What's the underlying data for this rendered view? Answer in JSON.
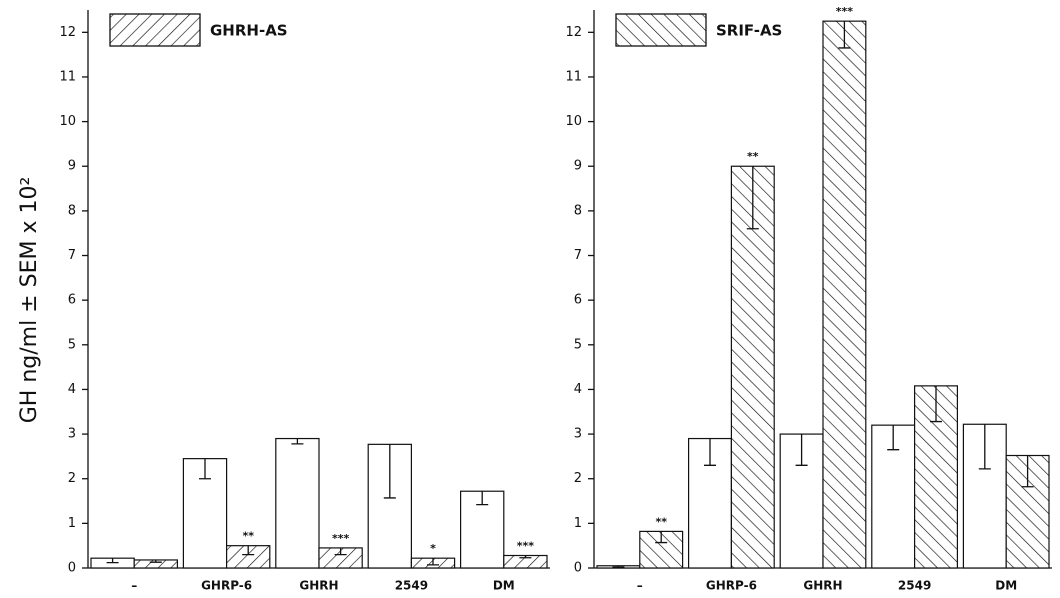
{
  "chart_data": [
    {
      "type": "bar",
      "ylabel": "GH ng/ml ± SEM x 10²",
      "categories": [
        "–",
        "GHRP-6",
        "GHRH",
        "2549",
        "DM"
      ],
      "series": [
        {
          "color": "#ffffff",
          "values": [
            0.22,
            2.45,
            2.9,
            2.77,
            1.72
          ],
          "errors": [
            0.1,
            0.45,
            0.12,
            1.2,
            0.3
          ]
        },
        {
          "name": "GHRH-AS",
          "color": "#ffffff",
          "pattern": "diagonal-up",
          "values": [
            0.18,
            0.5,
            0.45,
            0.22,
            0.28
          ],
          "errors": [
            0.05,
            0.2,
            0.15,
            0.15,
            0.05
          ],
          "annotations": [
            null,
            "**",
            "***",
            "*",
            "***"
          ]
        }
      ],
      "ylim": [
        0,
        12.5
      ],
      "yticks": [
        0,
        1,
        2,
        3,
        4,
        5,
        6,
        7,
        8,
        9,
        10,
        11,
        12
      ],
      "legend": "upper left"
    },
    {
      "type": "bar",
      "categories": [
        "–",
        "GHRP-6",
        "GHRH",
        "2549",
        "DM"
      ],
      "series": [
        {
          "color": "#ffffff",
          "values": [
            0.05,
            2.9,
            3.0,
            3.2,
            3.22
          ],
          "errors": [
            0.03,
            0.6,
            0.7,
            0.55,
            1.0
          ]
        },
        {
          "name": "SRIF-AS",
          "color": "#ffffff",
          "pattern": "diagonal-down",
          "values": [
            0.82,
            9.0,
            12.25,
            4.08,
            2.52
          ],
          "errors": [
            0.25,
            1.4,
            0.6,
            0.8,
            0.7
          ],
          "annotations": [
            "**",
            "**",
            "***",
            null,
            null
          ]
        }
      ],
      "ylim": [
        0,
        12.5
      ],
      "yticks": [
        0,
        1,
        2,
        3,
        4,
        5,
        6,
        7,
        8,
        9,
        10,
        11,
        12
      ],
      "legend": "upper left"
    }
  ]
}
